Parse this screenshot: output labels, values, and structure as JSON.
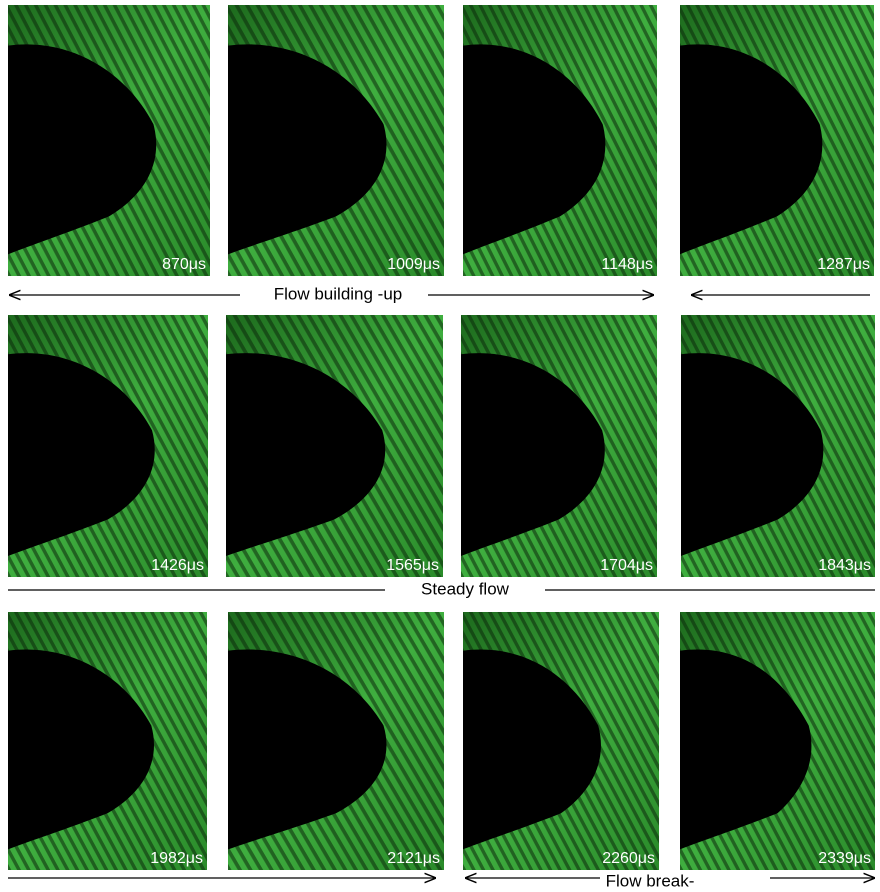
{
  "panels": [
    {
      "time": "870μs"
    },
    {
      "time": "1009μs"
    },
    {
      "time": "1148μs"
    },
    {
      "time": "1287μs"
    },
    {
      "time": "1426μs"
    },
    {
      "time": "1565μs"
    },
    {
      "time": "1704μs"
    },
    {
      "time": "1843μs"
    },
    {
      "time": "1982μs"
    },
    {
      "time": "2121μs"
    },
    {
      "time": "2260μs"
    },
    {
      "time": "2339μs"
    }
  ],
  "phases": [
    "Flow building -up",
    "Steady flow",
    "Flow break-"
  ]
}
